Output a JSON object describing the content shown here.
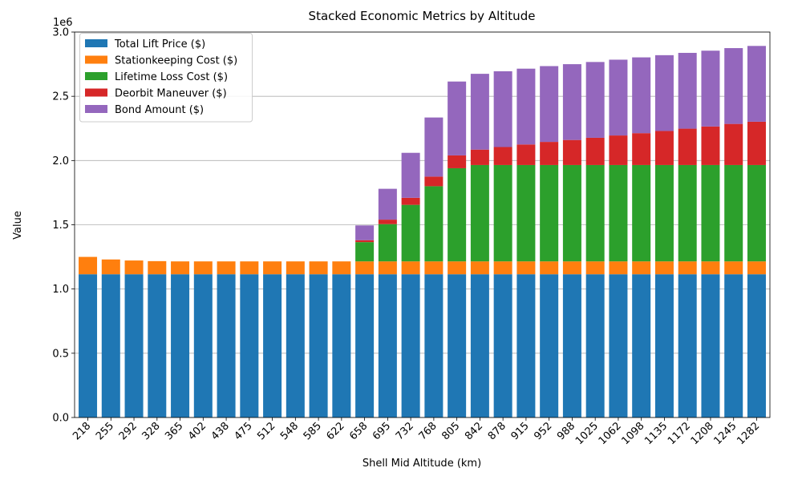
{
  "chart_data": {
    "type": "bar",
    "stacked": true,
    "title": "Stacked Economic Metrics by Altitude",
    "xlabel": "Shell Mid Altitude (km)",
    "ylabel": "Value",
    "y_offset_label": "1e6",
    "ylim": [
      0,
      3000000
    ],
    "y_ticks": [
      "0.0",
      "0.5",
      "1.0",
      "1.5",
      "2.0",
      "2.5",
      "3.0"
    ],
    "y_tick_values": [
      0,
      500000,
      1000000,
      1500000,
      2000000,
      2500000,
      3000000
    ],
    "grid": "horizontal",
    "legend_position": "top-left",
    "categories": [
      "218",
      "255",
      "292",
      "328",
      "365",
      "402",
      "438",
      "475",
      "512",
      "548",
      "585",
      "622",
      "658",
      "695",
      "732",
      "768",
      "805",
      "842",
      "878",
      "915",
      "952",
      "988",
      "1025",
      "1062",
      "1098",
      "1135",
      "1172",
      "1208",
      "1245",
      "1282"
    ],
    "series": [
      {
        "name": "Total Lift Price ($)",
        "color": "#1f77b4",
        "values": [
          1115000,
          1115000,
          1115000,
          1115000,
          1115000,
          1115000,
          1115000,
          1115000,
          1115000,
          1115000,
          1115000,
          1115000,
          1115000,
          1115000,
          1115000,
          1115000,
          1115000,
          1115000,
          1115000,
          1115000,
          1115000,
          1115000,
          1115000,
          1115000,
          1115000,
          1115000,
          1115000,
          1115000,
          1115000,
          1115000
        ]
      },
      {
        "name": "Stationkeeping Cost ($)",
        "color": "#ff7f0e",
        "values": [
          135000,
          115000,
          107000,
          102000,
          100000,
          100000,
          100000,
          100000,
          100000,
          100000,
          100000,
          100000,
          100000,
          100000,
          100000,
          100000,
          100000,
          100000,
          100000,
          100000,
          100000,
          100000,
          100000,
          100000,
          100000,
          100000,
          100000,
          100000,
          100000,
          100000
        ]
      },
      {
        "name": "Lifetime Loss Cost ($)",
        "color": "#2ca02c",
        "values": [
          0,
          0,
          0,
          0,
          0,
          0,
          0,
          0,
          0,
          0,
          0,
          0,
          150000,
          290000,
          440000,
          585000,
          725000,
          750000,
          750000,
          750000,
          750000,
          750000,
          750000,
          750000,
          750000,
          750000,
          750000,
          750000,
          750000,
          750000
        ]
      },
      {
        "name": "Deorbit Maneuver  ($)",
        "color": "#d62728",
        "values": [
          0,
          0,
          0,
          0,
          0,
          0,
          0,
          0,
          0,
          0,
          0,
          0,
          15000,
          35000,
          55000,
          75000,
          100000,
          120000,
          140000,
          160000,
          180000,
          195000,
          212000,
          230000,
          248000,
          265000,
          283000,
          300000,
          320000,
          337000
        ]
      },
      {
        "name": "Bond Amount ($)",
        "color": "#9467bd",
        "values": [
          0,
          0,
          0,
          0,
          0,
          0,
          0,
          0,
          0,
          0,
          0,
          0,
          115000,
          240000,
          350000,
          460000,
          575000,
          590000,
          590000,
          590000,
          590000,
          590000,
          590000,
          590000,
          590000,
          590000,
          590000,
          590000,
          590000,
          590000
        ]
      }
    ]
  }
}
